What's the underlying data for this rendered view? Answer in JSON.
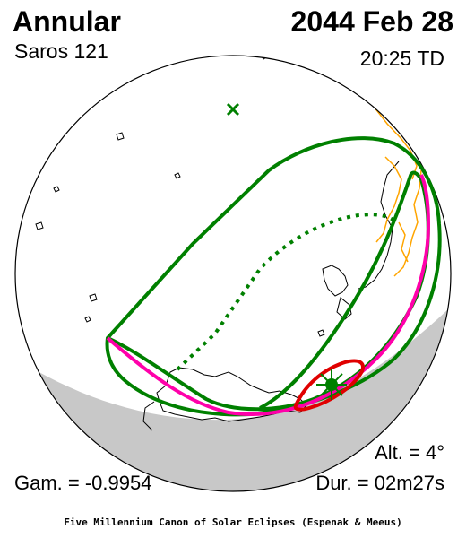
{
  "header": {
    "eclipse_type": "Annular",
    "saros": "Saros 121",
    "date": "2044 Feb 28",
    "time": "20:25 TD"
  },
  "stats": {
    "altitude": "Alt. =  4°",
    "gamma": "Gam. = -0.9954",
    "duration": "Dur. = 02m27s"
  },
  "footer": "Five Millennium Canon of Solar Eclipses (Espenak & Meeus)",
  "colors": {
    "penumbra_limits": "#008000",
    "central_path": "#ff00aa",
    "greatest_eclipse_zone": "#e00000",
    "night_shade": "#c8c8c8",
    "coastline": "#000000",
    "ice_shelf": "#ffa500"
  },
  "icons": {
    "subsolar_marker": "x-mark-icon",
    "greatest_eclipse_marker": "sun-star-icon"
  }
}
